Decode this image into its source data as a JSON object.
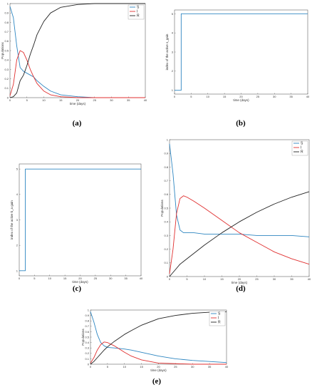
{
  "chart_data": [
    {
      "panel": "(a)",
      "type": "line",
      "xlabel": "time (days)",
      "ylabel": "Populations",
      "xlim": [
        0,
        40
      ],
      "ylim": [
        0,
        1
      ],
      "xticks": [
        "0",
        "5",
        "10",
        "15",
        "20",
        "25",
        "30",
        "35",
        "40"
      ],
      "yticks": [
        "0",
        "0.1",
        "0.2",
        "0.3",
        "0.4",
        "0.5",
        "0.6",
        "0.7",
        "0.8",
        "0.9",
        "1"
      ],
      "legend_position": "top-right",
      "x": [
        0,
        1,
        2,
        3,
        4,
        5,
        6,
        7,
        8,
        10,
        12,
        15,
        20,
        25,
        30,
        35,
        40
      ],
      "series": [
        {
          "name": "S",
          "color": "#2e86c1",
          "values": [
            0.97,
            0.85,
            0.55,
            0.32,
            0.28,
            0.26,
            0.24,
            0.22,
            0.18,
            0.12,
            0.07,
            0.03,
            0.01,
            0.0,
            0.0,
            0.0,
            0.0
          ]
        },
        {
          "name": "I",
          "color": "#e03030",
          "values": [
            0.02,
            0.14,
            0.4,
            0.5,
            0.48,
            0.4,
            0.3,
            0.22,
            0.15,
            0.07,
            0.03,
            0.01,
            0.0,
            0.0,
            0.0,
            0.0,
            0.0
          ]
        },
        {
          "name": "R",
          "color": "#222222",
          "values": [
            0.0,
            0.01,
            0.05,
            0.18,
            0.24,
            0.34,
            0.46,
            0.56,
            0.67,
            0.81,
            0.9,
            0.96,
            0.99,
            1.0,
            1.0,
            1.0,
            1.0
          ]
        }
      ]
    },
    {
      "panel": "(b)",
      "type": "line",
      "xlabel": "time (days)",
      "ylabel": "index of the active s_gain",
      "xlim": [
        0,
        40
      ],
      "ylim": [
        0.8,
        5.2
      ],
      "xticks": [
        "0",
        "5",
        "10",
        "15",
        "20",
        "25",
        "30",
        "35",
        "40"
      ],
      "yticks": [
        "1",
        "2",
        "3",
        "4",
        "5"
      ],
      "x": [
        0,
        1.9,
        1.9,
        2.0,
        2.0,
        40
      ],
      "series": [
        {
          "name": "",
          "color": "#2e86c1",
          "values": [
            1,
            1,
            1,
            1,
            5,
            5
          ]
        }
      ]
    },
    {
      "panel": "(c)",
      "type": "line",
      "xlabel": "time (days)",
      "ylabel": "index of the active k_a gain",
      "xlim": [
        0,
        40
      ],
      "ylim": [
        0.8,
        5.2
      ],
      "xticks": [
        "0",
        "5",
        "10",
        "15",
        "20",
        "25",
        "30",
        "35",
        "40"
      ],
      "yticks": [
        "1",
        "2",
        "3",
        "4",
        "5"
      ],
      "x": [
        0,
        2.0,
        2.0,
        40
      ],
      "series": [
        {
          "name": "",
          "color": "#2e86c1",
          "values": [
            1,
            1,
            5,
            5
          ]
        }
      ]
    },
    {
      "panel": "(d)",
      "type": "line",
      "xlabel": "time (days)",
      "ylabel": "Populations",
      "xlim": [
        0,
        40
      ],
      "ylim": [
        0,
        1
      ],
      "xticks": [
        "0",
        "5",
        "10",
        "15",
        "20",
        "25",
        "30",
        "35",
        "40"
      ],
      "yticks": [
        "0",
        "0.1",
        "0.2",
        "0.3",
        "0.4",
        "0.5",
        "0.6",
        "0.7",
        "0.8",
        "0.9",
        "1"
      ],
      "legend_position": "top-right",
      "x": [
        0,
        1,
        2,
        3,
        4,
        5,
        7,
        10,
        15,
        20,
        25,
        30,
        35,
        40
      ],
      "series": [
        {
          "name": "S",
          "color": "#2e86c1",
          "values": [
            0.97,
            0.75,
            0.45,
            0.34,
            0.32,
            0.32,
            0.32,
            0.31,
            0.31,
            0.31,
            0.3,
            0.3,
            0.3,
            0.29
          ]
        },
        {
          "name": "I",
          "color": "#e03030",
          "values": [
            0.02,
            0.2,
            0.46,
            0.57,
            0.59,
            0.58,
            0.55,
            0.5,
            0.41,
            0.32,
            0.25,
            0.18,
            0.13,
            0.09
          ]
        },
        {
          "name": "R",
          "color": "#222222",
          "values": [
            0.0,
            0.03,
            0.06,
            0.09,
            0.11,
            0.13,
            0.17,
            0.23,
            0.32,
            0.4,
            0.47,
            0.53,
            0.58,
            0.62
          ]
        }
      ]
    },
    {
      "panel": "(e)",
      "type": "line",
      "xlabel": "time (days)",
      "ylabel": "Populations",
      "xlim": [
        0,
        40
      ],
      "ylim": [
        0,
        1
      ],
      "xticks": [
        "0",
        "5",
        "10",
        "15",
        "20",
        "25",
        "30",
        "35",
        "40"
      ],
      "yticks": [
        "0",
        "0.1",
        "0.2",
        "0.3",
        "0.4",
        "0.5",
        "0.6",
        "0.7",
        "0.8",
        "0.9",
        "1"
      ],
      "legend_position": "top-right",
      "x": [
        0,
        1,
        2,
        3,
        4,
        5,
        7,
        10,
        12,
        15,
        20,
        25,
        30,
        35,
        40
      ],
      "series": [
        {
          "name": "S",
          "color": "#2e86c1",
          "values": [
            0.97,
            0.78,
            0.55,
            0.4,
            0.34,
            0.31,
            0.3,
            0.28,
            0.26,
            0.22,
            0.15,
            0.1,
            0.07,
            0.05,
            0.03
          ]
        },
        {
          "name": "I",
          "color": "#e03030",
          "values": [
            0.02,
            0.12,
            0.26,
            0.36,
            0.41,
            0.4,
            0.34,
            0.22,
            0.15,
            0.08,
            0.02,
            0.01,
            0.0,
            0.0,
            0.0
          ]
        },
        {
          "name": "R",
          "color": "#222222",
          "values": [
            0.0,
            0.05,
            0.12,
            0.19,
            0.26,
            0.32,
            0.42,
            0.55,
            0.62,
            0.72,
            0.84,
            0.9,
            0.94,
            0.96,
            0.97
          ]
        }
      ]
    }
  ]
}
